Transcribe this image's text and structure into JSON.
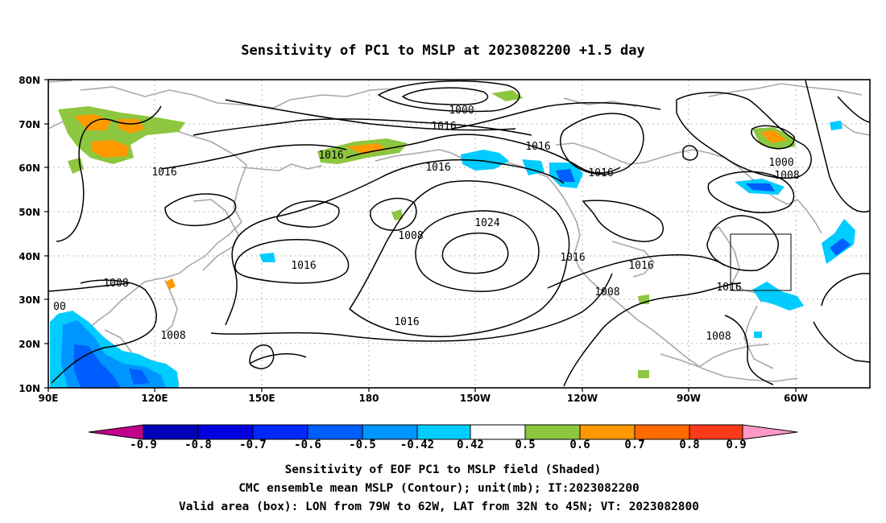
{
  "title": "Sensitivity of PC1 to MSLP at 2023082200 +1.5 day",
  "map": {
    "lat_labels": [
      "80N",
      "70N",
      "60N",
      "50N",
      "40N",
      "30N",
      "20N",
      "10N"
    ],
    "lon_labels": [
      "90E",
      "120E",
      "150E",
      "180",
      "150W",
      "120W",
      "90W",
      "60W"
    ],
    "grid": "dotted",
    "box": {
      "lon_from": "79W",
      "lon_to": "62W",
      "lat_from": "32N",
      "lat_to": "45N"
    },
    "contour_labels": [
      "1000",
      "1016",
      "1016",
      "1016",
      "1016",
      "1016",
      "1016",
      "1016",
      "1000",
      "1008",
      "1008",
      "1024",
      "1016",
      "1016",
      "1016",
      "1016",
      "1008",
      "1008",
      "1016",
      "1008",
      "1008",
      "00"
    ]
  },
  "colorbar": {
    "labels": [
      "-0.9",
      "-0.8",
      "-0.7",
      "-0.6",
      "-0.5",
      "-0.42",
      "0.42",
      "0.5",
      "0.6",
      "0.7",
      "0.8",
      "0.9"
    ],
    "colors": [
      "#c0008a",
      "#0000b8",
      "#0000e0",
      "#0028ff",
      "#005eff",
      "#0096ff",
      "#00ccff",
      "#ffffff",
      "#8dc63f",
      "#ff9900",
      "#ff6a00",
      "#ff3a1a",
      "#ff0000",
      "#ff99c8"
    ]
  },
  "captions": {
    "line1": "Sensitivity of EOF PC1 to MSLP field (Shaded)",
    "line2": "CMC ensemble mean MSLP (Contour); unit(mb); IT:2023082200",
    "line3": "Valid area (box): LON from 79W to 62W, LAT from 32N to 45N; VT: 2023082800"
  }
}
